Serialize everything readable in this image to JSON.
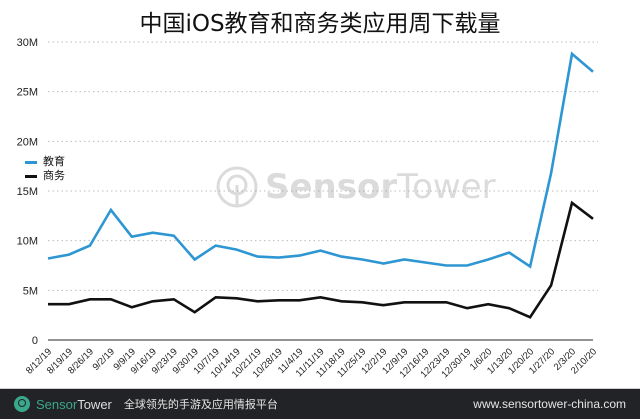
{
  "title": "中国iOS教育和商务类应用周下载量",
  "legend": [
    {
      "label": "教育",
      "color": "#2e96d2"
    },
    {
      "label": "商务",
      "color": "#111111"
    }
  ],
  "watermark": {
    "brand_bold": "Sensor",
    "brand_light": "Tower"
  },
  "footer": {
    "brand_bold": "Sensor",
    "brand_light": "Tower",
    "tagline": "全球领先的手游及应用情报平台",
    "url": "www.sensortower-china.com"
  },
  "chart_data": {
    "type": "line",
    "title": "中国iOS教育和商务类应用周下载量",
    "xlabel": "",
    "ylabel": "",
    "ylim": [
      0,
      30000000
    ],
    "yticks": [
      "0",
      "5M",
      "10M",
      "15M",
      "20M",
      "25M",
      "30M"
    ],
    "grid": true,
    "legend_position": "upper-left",
    "categories": [
      "8/12/19",
      "8/19/19",
      "8/26/19",
      "9/2/19",
      "9/9/19",
      "9/16/19",
      "9/23/19",
      "9/30/19",
      "10/7/19",
      "10/14/19",
      "10/21/19",
      "10/28/19",
      "11/4/19",
      "11/11/19",
      "11/18/19",
      "11/25/19",
      "12/2/19",
      "12/9/19",
      "12/16/19",
      "12/23/19",
      "12/30/19",
      "1/6/20",
      "1/13/20",
      "1/20/20",
      "1/27/20",
      "2/3/20",
      "2/10/20"
    ],
    "series": [
      {
        "name": "教育",
        "color": "#2e96d2",
        "values": [
          8.2,
          8.6,
          9.5,
          13.1,
          10.4,
          10.8,
          10.5,
          8.1,
          9.5,
          9.1,
          8.4,
          8.3,
          8.5,
          9.0,
          8.4,
          8.1,
          7.7,
          8.1,
          7.8,
          7.5,
          7.5,
          8.1,
          8.8,
          7.4,
          16.8,
          28.8,
          27.0
        ]
      },
      {
        "name": "商务",
        "color": "#111111",
        "values": [
          3.6,
          3.6,
          4.1,
          4.1,
          3.3,
          3.9,
          4.1,
          2.8,
          4.3,
          4.2,
          3.9,
          4.0,
          4.0,
          4.3,
          3.9,
          3.8,
          3.5,
          3.8,
          3.8,
          3.8,
          3.2,
          3.6,
          3.2,
          2.3,
          5.5,
          13.8,
          12.2
        ]
      }
    ],
    "unit": "M"
  }
}
